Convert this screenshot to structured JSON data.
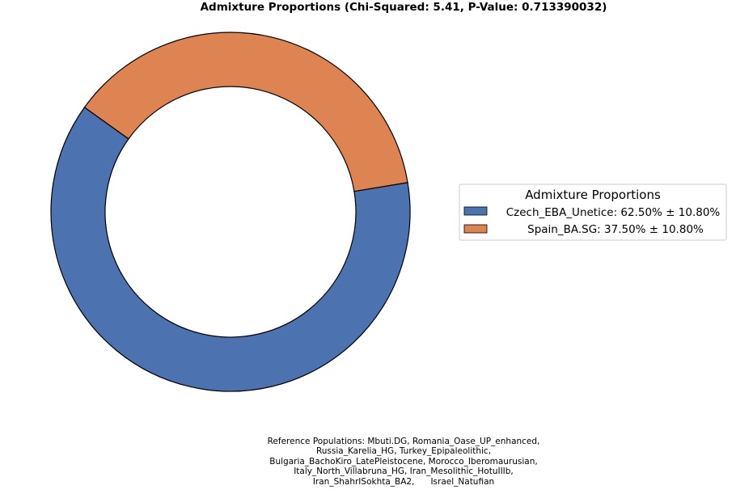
{
  "chart_data": {
    "type": "pie",
    "style": "donut",
    "title": "Admixture Proportions (Chi-Squared: 5.41, P-Value: 0.713390032)",
    "legend": {
      "title": "Admixture Proportions",
      "placement": "right"
    },
    "slices": [
      {
        "label": "Czech_EBA_Unetice",
        "value": 62.5,
        "error": 10.8,
        "legend_text": "Czech_EBA_Unetice: 62.50% ± 10.80%",
        "color": "#4c72b0"
      },
      {
        "label": "Spain_BA.SG",
        "value": 37.5,
        "error": 10.8,
        "legend_text": "Spain_BA.SG: 37.50% ± 10.80%",
        "color": "#dd8452"
      }
    ],
    "footnote_lines": [
      "Reference Populations: Mbuti.DG, Romania_Oase_UP_enhanced,",
      "Russia_Karelia_HG, Turkey_Epipaleolithic,",
      "Bulgaria_BachoKiro_LatePleistocene, Morocco_Iberomaurusian,",
      "Italy_North_Villabruna_HG, Iran_Mesolithic_HotuIIIb,",
      "Iran_ShahrISokhta_BA2,      Israel_Natufian"
    ]
  }
}
